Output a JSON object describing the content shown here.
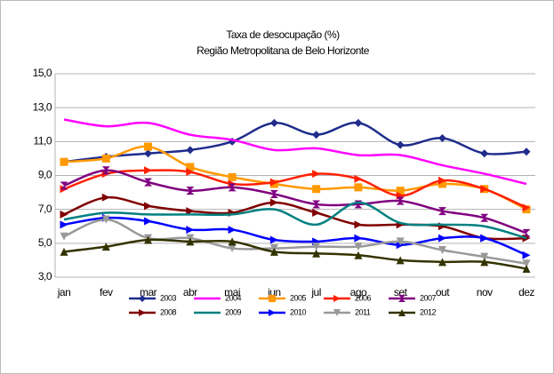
{
  "chart_data": {
    "type": "line",
    "title": "Taxa de desocupação (%)",
    "subtitle": "Região Metropolitana de Belo Horizonte",
    "categories": [
      "jan",
      "fev",
      "mar",
      "abr",
      "mai",
      "jun",
      "jul",
      "ago",
      "set",
      "out",
      "nov",
      "dez"
    ],
    "ylim": [
      3,
      15
    ],
    "yticks": [
      {
        "value": 3,
        "label": "3,0"
      },
      {
        "value": 5,
        "label": "5,0"
      },
      {
        "value": 7,
        "label": "7,0"
      },
      {
        "value": 9,
        "label": "9,0"
      },
      {
        "value": 11,
        "label": "11,0"
      },
      {
        "value": 13,
        "label": "13,0"
      },
      {
        "value": 15,
        "label": "15,0"
      }
    ],
    "grid": true,
    "smooth": true,
    "legend": "bottom",
    "series": [
      {
        "name": "2003",
        "color": "#1f2c8c",
        "marker": "diamond",
        "values": [
          9.8,
          10.1,
          10.3,
          10.5,
          11.0,
          12.1,
          11.4,
          12.1,
          10.8,
          11.2,
          10.3,
          10.4
        ]
      },
      {
        "name": "2004",
        "color": "#ff00ff",
        "marker": "none",
        "values": [
          12.3,
          11.9,
          12.1,
          11.4,
          11.1,
          10.5,
          10.6,
          10.2,
          10.2,
          9.6,
          9.1,
          8.5
        ]
      },
      {
        "name": "2005",
        "color": "#ff9900",
        "marker": "square",
        "values": [
          9.8,
          10.0,
          10.7,
          9.5,
          8.9,
          8.5,
          8.2,
          8.3,
          8.1,
          8.5,
          8.2,
          7.0
        ]
      },
      {
        "name": "2006",
        "color": "#ff2000",
        "marker": "right",
        "values": [
          8.2,
          9.1,
          9.3,
          9.2,
          8.5,
          8.6,
          9.1,
          8.8,
          7.8,
          8.7,
          8.2,
          7.1
        ]
      },
      {
        "name": "2007",
        "color": "#800080",
        "marker": "hourglass",
        "values": [
          8.4,
          9.3,
          8.6,
          8.1,
          8.3,
          7.9,
          7.3,
          7.3,
          7.5,
          6.9,
          6.5,
          5.6
        ]
      },
      {
        "name": "2008",
        "color": "#800000",
        "marker": "right",
        "values": [
          6.7,
          7.7,
          7.2,
          6.9,
          6.8,
          7.4,
          6.8,
          6.1,
          6.1,
          6.0,
          5.3,
          5.3
        ]
      },
      {
        "name": "2009",
        "color": "#008080",
        "marker": "none",
        "values": [
          6.4,
          6.8,
          6.7,
          6.7,
          6.7,
          7.0,
          6.1,
          7.4,
          6.2,
          6.1,
          6.0,
          5.3
        ]
      },
      {
        "name": "2010",
        "color": "#0000ff",
        "marker": "right",
        "values": [
          6.1,
          6.5,
          6.3,
          5.8,
          5.8,
          5.2,
          5.1,
          5.3,
          4.9,
          5.3,
          5.3,
          4.3
        ]
      },
      {
        "name": "2011",
        "color": "#999999",
        "marker": "down",
        "values": [
          5.4,
          6.4,
          5.3,
          5.3,
          4.7,
          4.7,
          4.8,
          4.8,
          5.1,
          4.6,
          4.2,
          3.8
        ]
      },
      {
        "name": "2012",
        "color": "#333300",
        "marker": "up",
        "values": [
          4.5,
          4.8,
          5.2,
          5.1,
          5.1,
          4.5,
          4.4,
          4.3,
          4.0,
          3.9,
          3.9,
          3.5
        ]
      }
    ]
  }
}
